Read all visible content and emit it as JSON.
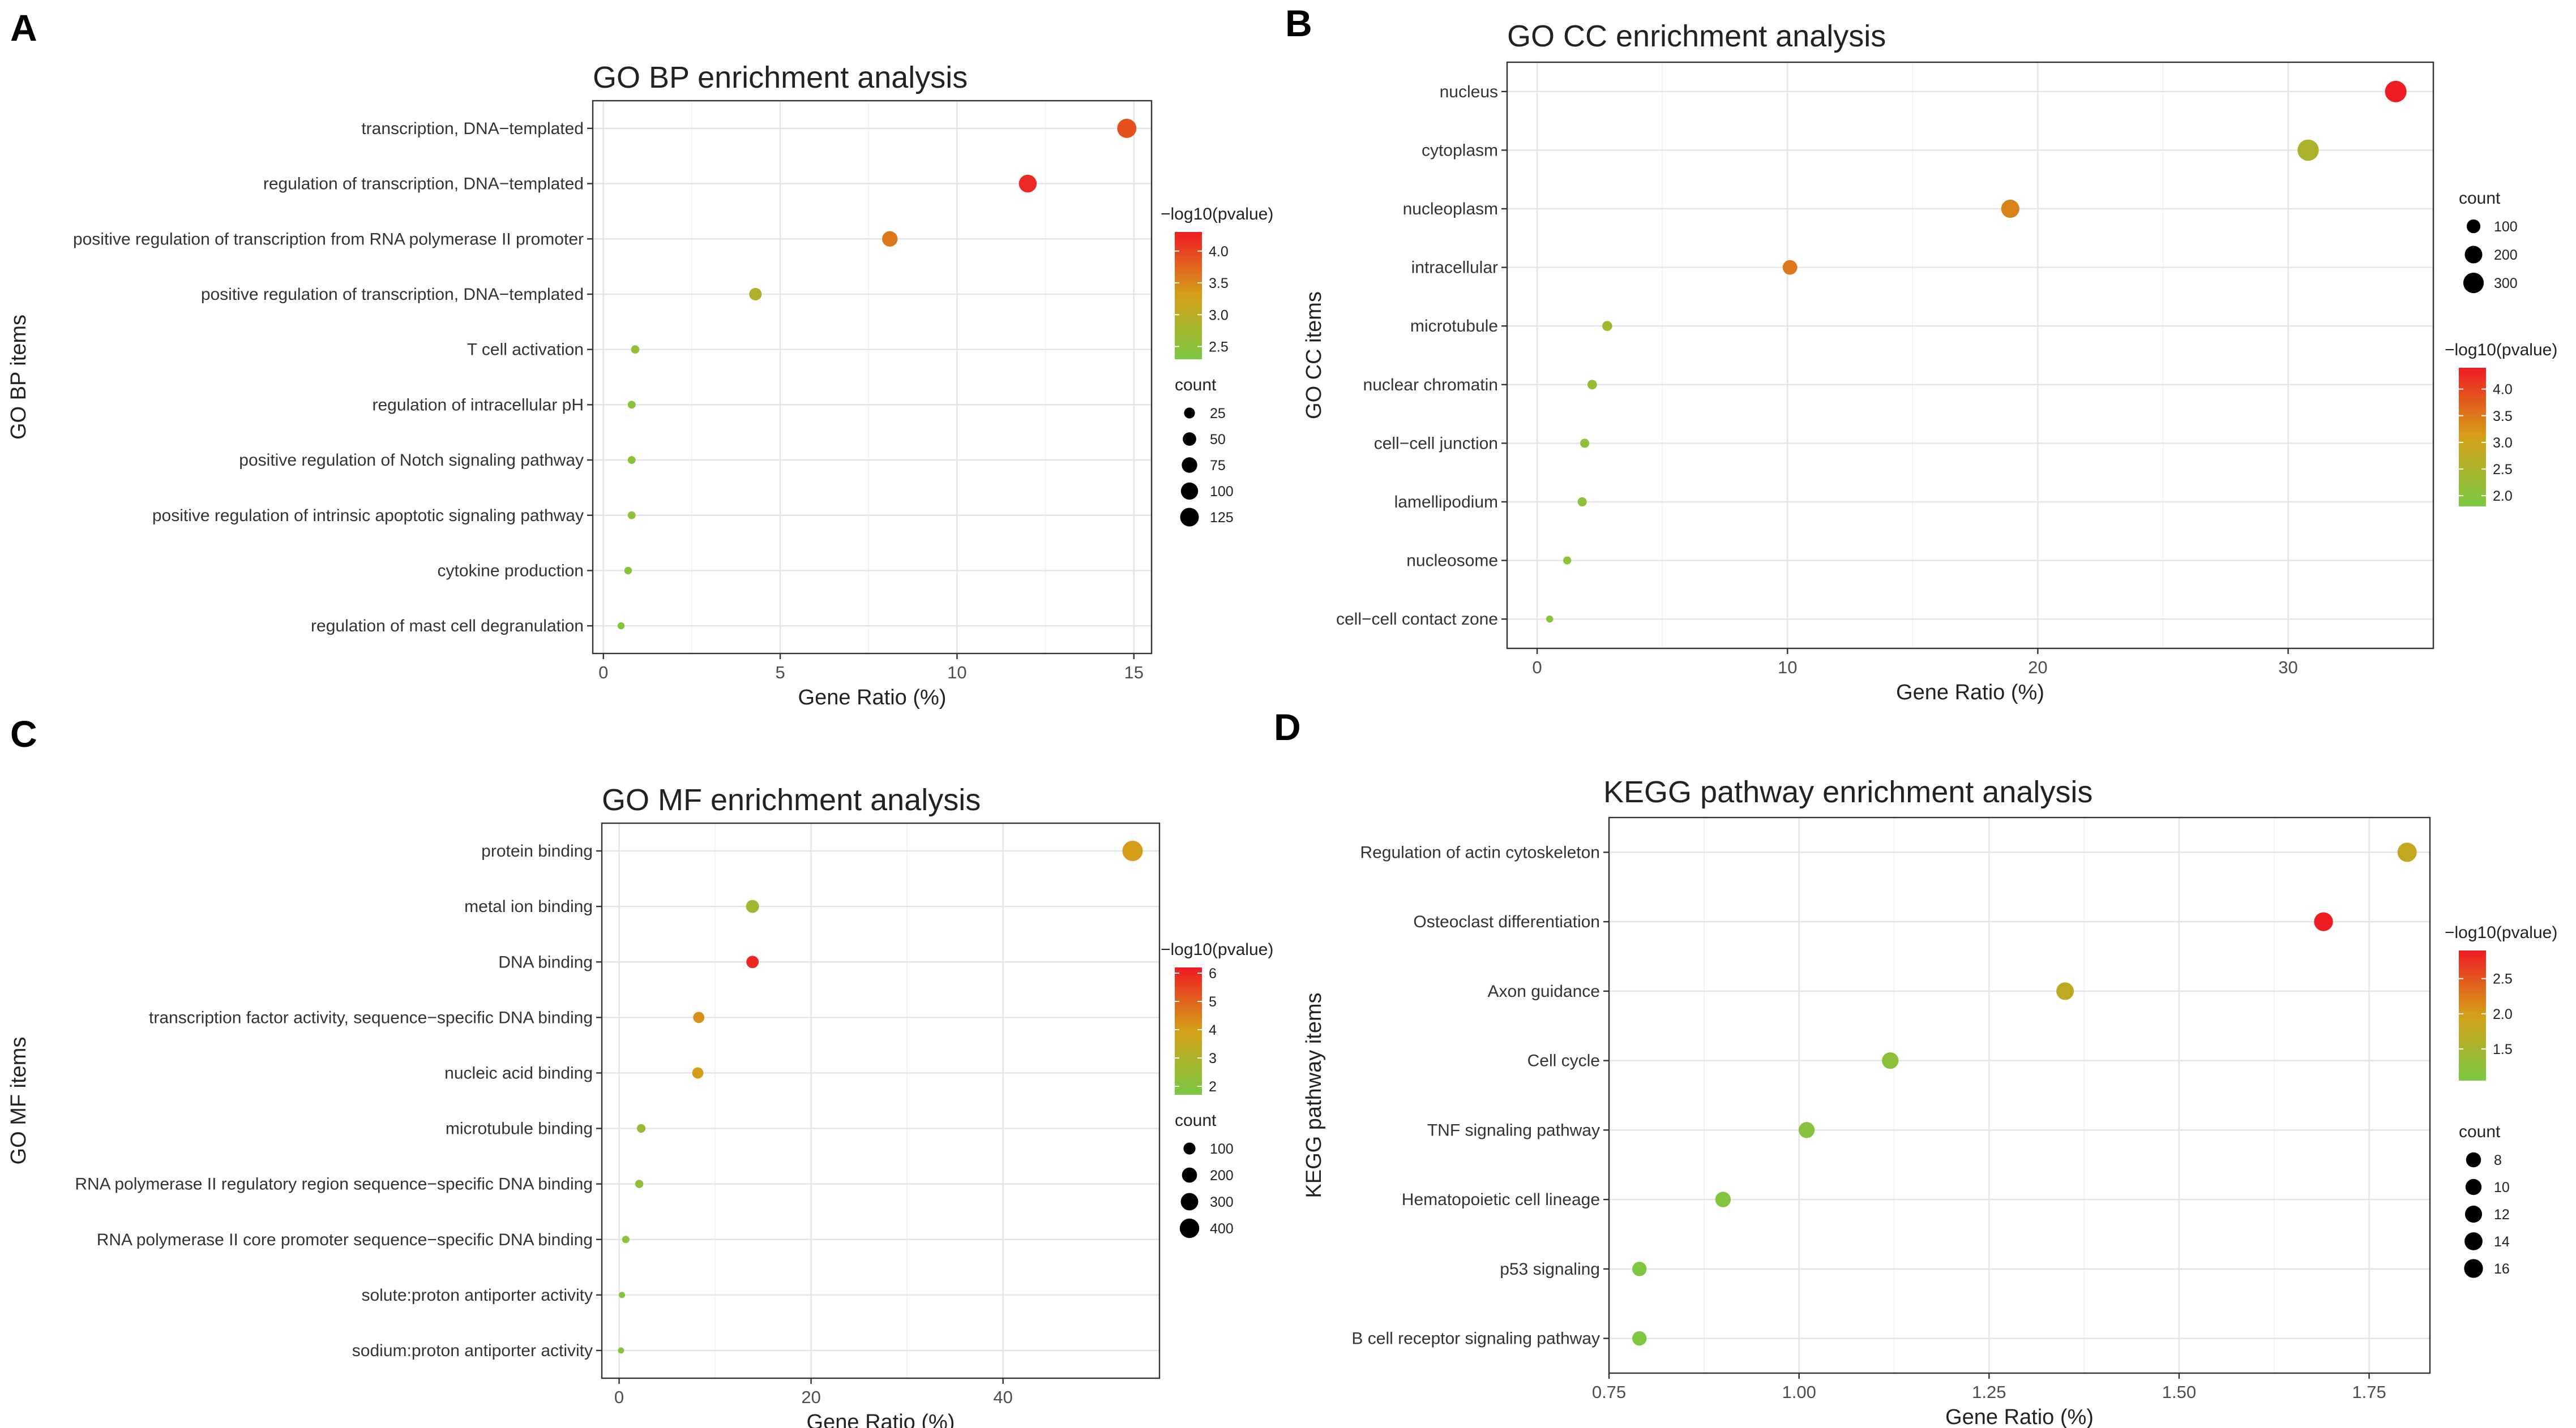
{
  "panels": [
    "A",
    "B",
    "C",
    "D"
  ],
  "colors": {
    "low": "#7ac943",
    "mid": "#d4a017",
    "high": "#ef1c24"
  },
  "chart_data": [
    {
      "type": "scatter",
      "title": "GO BP enrichment analysis",
      "xlabel": "Gene Ratio (%)",
      "ylabel": "GO BP items",
      "xlim": [
        -0.3,
        15.5
      ],
      "x_ticks": [
        0,
        5,
        10,
        15
      ],
      "x_tick_labels": [
        "0",
        "5",
        "10",
        "15"
      ],
      "categories": [
        "transcription, DNA−templated",
        "regulation of transcription, DNA−templated",
        "positive regulation of transcription from RNA polymerase II promoter",
        "positive regulation of transcription, DNA−templated",
        "T cell activation",
        "regulation of intracellular pH",
        "positive regulation of Notch signaling pathway",
        "positive regulation of intrinsic apoptotic signaling pathway",
        "cytokine production",
        "regulation of mast cell degranulation"
      ],
      "x": [
        14.8,
        12.0,
        8.1,
        4.3,
        0.9,
        0.8,
        0.8,
        0.8,
        0.7,
        0.5
      ],
      "count": [
        135,
        110,
        75,
        40,
        9,
        7,
        7,
        7,
        6,
        4
      ],
      "pvalue_log10": [
        3.9,
        4.2,
        3.6,
        2.9,
        2.6,
        2.5,
        2.5,
        2.5,
        2.45,
        2.4
      ],
      "color_legend": {
        "title": "−log10(pvalue)",
        "ticks": [
          2.5,
          3.0,
          3.5,
          4.0
        ],
        "tick_labels": [
          "2.5",
          "3.0",
          "3.5",
          "4.0"
        ],
        "range": [
          2.3,
          4.3
        ]
      },
      "size_legend": {
        "title": "count",
        "values": [
          25,
          50,
          75,
          100,
          125
        ],
        "labels": [
          "25",
          "50",
          "75",
          "100",
          "125"
        ]
      }
    },
    {
      "type": "scatter",
      "title": "GO CC enrichment analysis",
      "xlabel": "Gene Ratio (%)",
      "ylabel": "GO CC items",
      "xlim": [
        -1.2,
        35.8
      ],
      "x_ticks": [
        0,
        10,
        20,
        30
      ],
      "x_tick_labels": [
        "0",
        "10",
        "20",
        "30"
      ],
      "categories": [
        "nucleus",
        "cytoplasm",
        "nucleoplasm",
        "intracellular",
        "microtubule",
        "nuclear chromatin",
        "cell−cell junction",
        "lamellipodium",
        "nucleosome",
        "cell−cell contact zone"
      ],
      "x": [
        34.3,
        30.8,
        18.9,
        10.1,
        2.8,
        2.2,
        1.9,
        1.8,
        1.2,
        0.5
      ],
      "count": [
        340,
        330,
        220,
        120,
        35,
        30,
        25,
        25,
        15,
        8
      ],
      "pvalue_log10": [
        4.4,
        2.5,
        3.4,
        3.5,
        2.3,
        2.2,
        2.1,
        2.1,
        2.1,
        2.0
      ],
      "color_legend": {
        "title": "−log10(pvalue)",
        "ticks": [
          2.0,
          2.5,
          3.0,
          3.5,
          4.0
        ],
        "tick_labels": [
          "2.0",
          "2.5",
          "3.0",
          "3.5",
          "4.0"
        ],
        "range": [
          1.8,
          4.4
        ]
      },
      "size_legend": {
        "title": "count",
        "values": [
          100,
          200,
          300
        ],
        "labels": [
          "100",
          "200",
          "300"
        ]
      }
    },
    {
      "type": "scatter",
      "title": "GO MF enrichment analysis",
      "xlabel": "Gene Ratio (%)",
      "ylabel": "GO MF items",
      "xlim": [
        -1.8,
        56.3
      ],
      "x_ticks": [
        0,
        20,
        40
      ],
      "x_tick_labels": [
        "0",
        "20",
        "40"
      ],
      "categories": [
        "protein binding",
        "metal ion binding",
        "DNA binding",
        "transcription factor activity, sequence−specific DNA binding",
        "nucleic acid binding",
        "microtubule binding",
        "RNA polymerase II regulatory region sequence−specific DNA binding",
        "RNA polymerase II core promoter sequence−specific DNA binding",
        "solute:proton antiporter activity",
        "sodium:proton antiporter activity"
      ],
      "x": [
        53.5,
        13.9,
        13.9,
        8.3,
        8.2,
        2.3,
        2.1,
        0.7,
        0.3,
        0.2
      ],
      "count": [
        450,
        130,
        110,
        80,
        80,
        30,
        25,
        15,
        5,
        5
      ],
      "pvalue_log10": [
        4.0,
        2.6,
        6.0,
        4.2,
        4.0,
        2.5,
        2.3,
        2.1,
        2.1,
        2.1
      ],
      "color_legend": {
        "title": "−log10(pvalue)",
        "ticks": [
          2,
          3,
          4,
          5,
          6
        ],
        "tick_labels": [
          "2",
          "3",
          "4",
          "5",
          "6"
        ],
        "range": [
          1.7,
          6.2
        ]
      },
      "size_legend": {
        "title": "count",
        "values": [
          100,
          200,
          300,
          400
        ],
        "labels": [
          "100",
          "200",
          "300",
          "400"
        ]
      }
    },
    {
      "type": "scatter",
      "title": "KEGG pathway enrichment analysis",
      "xlabel": "Gene Ratio (%)",
      "ylabel": "KEGG pathway items",
      "xlim": [
        0.75,
        1.83
      ],
      "x_ticks": [
        0.75,
        1.0,
        1.25,
        1.5,
        1.75
      ],
      "x_tick_labels": [
        "0.75",
        "1.00",
        "1.25",
        "1.50",
        "1.75"
      ],
      "categories": [
        "Regulation of actin cytoskeleton",
        "Osteoclast differentiation",
        "Axon guidance",
        "Cell cycle",
        "TNF signaling pathway",
        "Hematopoietic cell lineage",
        "p53 signaling",
        "B cell receptor signaling pathway"
      ],
      "x": [
        1.8,
        1.69,
        1.35,
        1.12,
        1.01,
        0.9,
        0.79,
        0.79
      ],
      "count": [
        17,
        16,
        13,
        11,
        10,
        9,
        7,
        7
      ],
      "pvalue_log10": [
        1.8,
        2.9,
        1.75,
        1.25,
        1.2,
        1.15,
        1.1,
        1.1
      ],
      "color_legend": {
        "title": "−log10(pvalue)",
        "ticks": [
          1.5,
          2.0,
          2.5
        ],
        "tick_labels": [
          "1.5",
          "2.0",
          "2.5"
        ],
        "range": [
          1.05,
          2.9
        ]
      },
      "size_legend": {
        "title": "count",
        "values": [
          8,
          10,
          12,
          14,
          16
        ],
        "labels": [
          "8",
          "10",
          "12",
          "14",
          "16"
        ]
      }
    }
  ]
}
